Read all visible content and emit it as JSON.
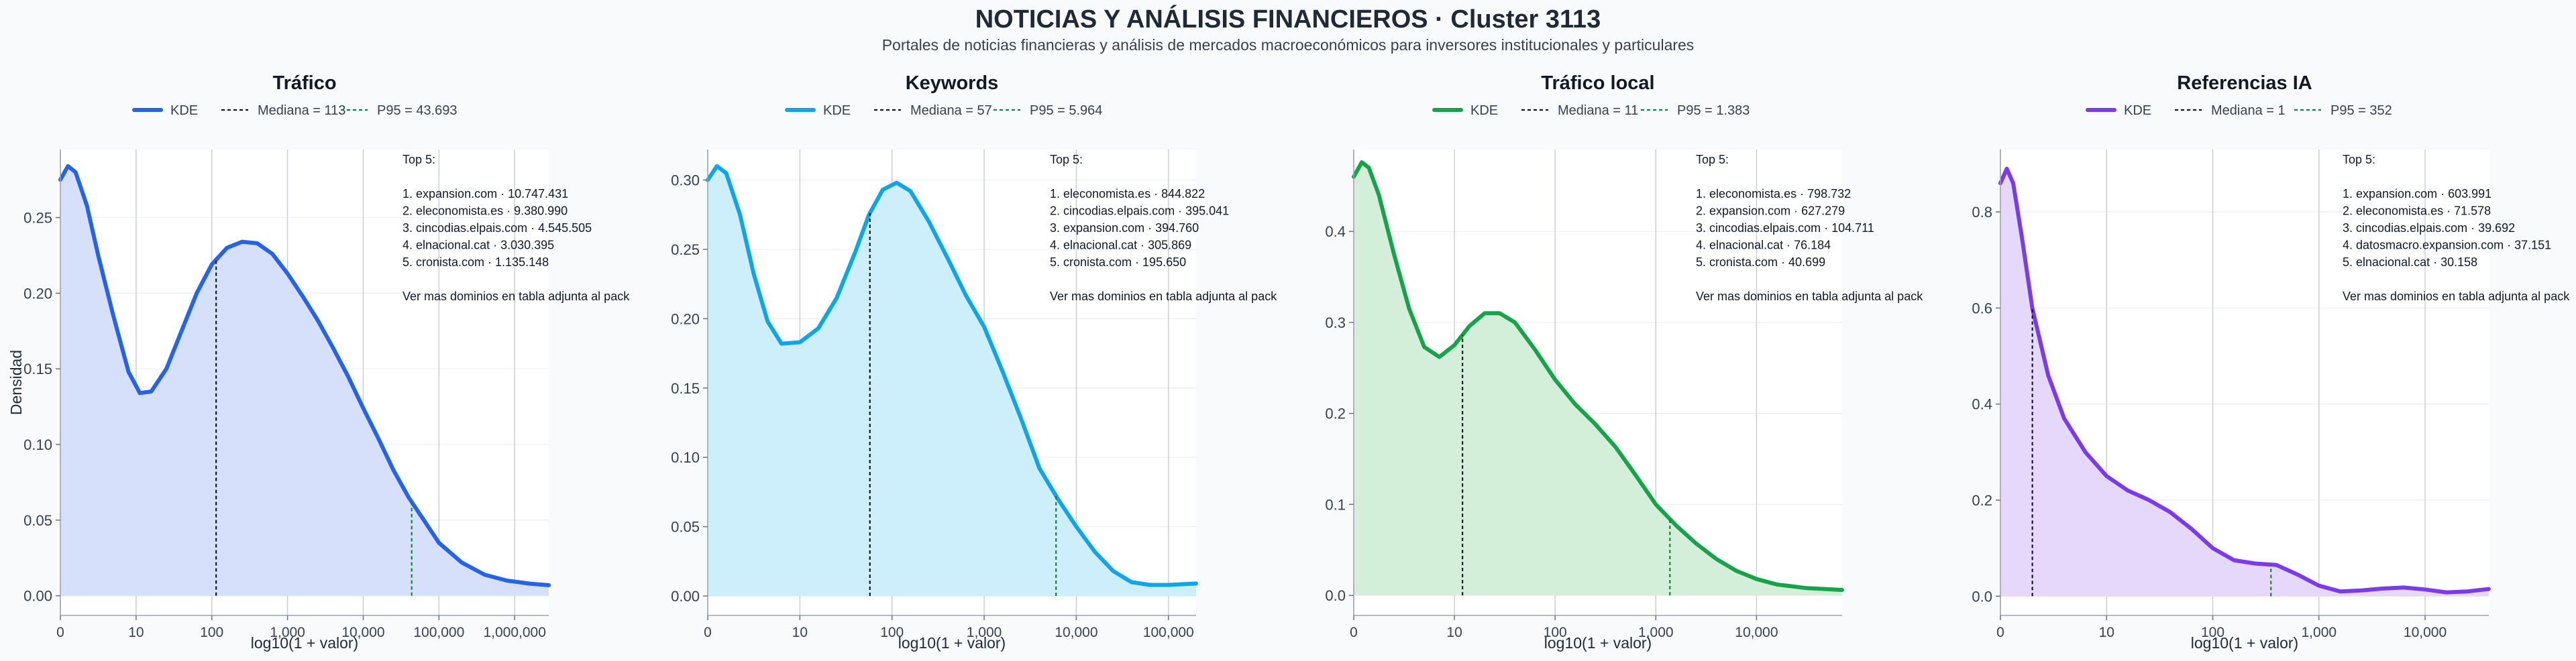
{
  "header": {
    "title": "NOTICIAS Y ANÁLISIS FINANCIEROS · Cluster 3113",
    "subtitle": "Portales de noticias financieras y análisis de mercados macroeconómicos para inversores institucionales y particulares"
  },
  "colors": {
    "background": "#f8fafc",
    "grid": "#c8ccd2",
    "median_line": "#111827",
    "p95_line": "#15803d"
  },
  "chart_data": [
    {
      "type": "area",
      "title": "Tráfico",
      "xlabel": "log10(1 + valor)",
      "ylabel": "Densidad",
      "color": "#2563eb",
      "fill": "#d6e0fa",
      "x_ticks": [
        0,
        1,
        2,
        3,
        4,
        5,
        6
      ],
      "x_tick_labels": [
        "0",
        "10",
        "100",
        "1,000",
        "10,000",
        "100,000",
        "1,000,000"
      ],
      "xlim": [
        0,
        6.45
      ],
      "y_ticks": [
        0,
        0.05,
        0.1,
        0.15,
        0.2,
        0.25
      ],
      "y_tick_labels": [
        "0.00",
        "0.05",
        "0.10",
        "0.15",
        "0.20",
        "0.25"
      ],
      "ylim": [
        -0.013,
        0.295
      ],
      "legend": {
        "kde": "KDE",
        "median": "Mediana = 113",
        "p95": "P95 = 43.693"
      },
      "median_x": 2.057,
      "p95_x": 4.64,
      "kde": {
        "x": [
          0,
          0.1,
          0.2,
          0.35,
          0.5,
          0.7,
          0.9,
          1.05,
          1.2,
          1.4,
          1.6,
          1.8,
          2.0,
          2.2,
          2.4,
          2.6,
          2.8,
          3.0,
          3.2,
          3.4,
          3.6,
          3.8,
          4.0,
          4.2,
          4.4,
          4.6,
          4.8,
          5.0,
          5.3,
          5.6,
          5.9,
          6.2,
          6.45
        ],
        "y": [
          0.275,
          0.284,
          0.28,
          0.258,
          0.225,
          0.185,
          0.148,
          0.134,
          0.135,
          0.15,
          0.175,
          0.2,
          0.219,
          0.23,
          0.234,
          0.233,
          0.226,
          0.213,
          0.198,
          0.182,
          0.164,
          0.145,
          0.124,
          0.104,
          0.083,
          0.065,
          0.05,
          0.035,
          0.022,
          0.014,
          0.01,
          0.008,
          0.007
        ]
      },
      "top5": {
        "heading": "Top 5:",
        "items": [
          "1. expansion.com · 10.747.431",
          "2. eleconomista.es · 9.380.990",
          "3. cincodias.elpais.com · 4.545.505",
          "4. elnacional.cat · 3.030.395",
          "5. cronista.com · 1.135.148"
        ],
        "footer": "Ver mas dominios en tabla adjunta al pack"
      }
    },
    {
      "type": "area",
      "title": "Keywords",
      "xlabel": "log10(1 + valor)",
      "ylabel": "",
      "color": "#0ea5e9",
      "fill": "#cdeffc",
      "x_ticks": [
        0,
        1,
        2,
        3,
        4,
        5
      ],
      "x_tick_labels": [
        "0",
        "10",
        "100",
        "1,000",
        "10,000",
        "100,000"
      ],
      "xlim": [
        0,
        5.3
      ],
      "y_ticks": [
        0,
        0.05,
        0.1,
        0.15,
        0.2,
        0.25,
        0.3
      ],
      "y_tick_labels": [
        "0.00",
        "0.05",
        "0.10",
        "0.15",
        "0.20",
        "0.25",
        "0.30"
      ],
      "ylim": [
        -0.014,
        0.322
      ],
      "legend": {
        "kde": "KDE",
        "median": "Mediana = 57",
        "p95": "P95 = 5.964"
      },
      "median_x": 1.76,
      "p95_x": 3.78,
      "kde": {
        "x": [
          0,
          0.1,
          0.2,
          0.35,
          0.5,
          0.65,
          0.8,
          1.0,
          1.2,
          1.4,
          1.6,
          1.75,
          1.9,
          2.05,
          2.2,
          2.4,
          2.6,
          2.8,
          3.0,
          3.2,
          3.4,
          3.6,
          3.8,
          4.0,
          4.2,
          4.4,
          4.6,
          4.8,
          5.0,
          5.3
        ],
        "y": [
          0.3,
          0.31,
          0.305,
          0.275,
          0.232,
          0.198,
          0.182,
          0.183,
          0.193,
          0.215,
          0.248,
          0.275,
          0.293,
          0.298,
          0.292,
          0.27,
          0.244,
          0.217,
          0.194,
          0.162,
          0.128,
          0.092,
          0.07,
          0.05,
          0.032,
          0.018,
          0.01,
          0.008,
          0.008,
          0.009
        ]
      },
      "top5": {
        "heading": "Top 5:",
        "items": [
          "1. eleconomista.es · 844.822",
          "2. cincodias.elpais.com · 395.041",
          "3. expansion.com · 394.760",
          "4. elnacional.cat · 305.869",
          "5. cronista.com · 195.650"
        ],
        "footer": "Ver mas dominios en tabla adjunta al pack"
      }
    },
    {
      "type": "area",
      "title": "Tráfico local",
      "xlabel": "log10(1 + valor)",
      "ylabel": "",
      "color": "#16a34a",
      "fill": "#d3eed9",
      "x_ticks": [
        0,
        1,
        2,
        3,
        4
      ],
      "x_tick_labels": [
        "0",
        "10",
        "100",
        "1,000",
        "10,000"
      ],
      "xlim": [
        0,
        4.85
      ],
      "y_ticks": [
        0,
        0.1,
        0.2,
        0.3,
        0.4
      ],
      "y_tick_labels": [
        "0.0",
        "0.1",
        "0.2",
        "0.3",
        "0.4"
      ],
      "ylim": [
        -0.022,
        0.49
      ],
      "legend": {
        "kde": "KDE",
        "median": "Mediana = 11",
        "p95": "P95 = 1.383"
      },
      "median_x": 1.08,
      "p95_x": 3.14,
      "kde": {
        "x": [
          0,
          0.08,
          0.15,
          0.25,
          0.4,
          0.55,
          0.7,
          0.85,
          1.0,
          1.15,
          1.3,
          1.45,
          1.6,
          1.8,
          2.0,
          2.2,
          2.4,
          2.6,
          2.8,
          3.0,
          3.2,
          3.4,
          3.6,
          3.8,
          4.0,
          4.2,
          4.5,
          4.85
        ],
        "y": [
          0.46,
          0.476,
          0.47,
          0.44,
          0.375,
          0.315,
          0.273,
          0.262,
          0.275,
          0.296,
          0.31,
          0.31,
          0.3,
          0.27,
          0.237,
          0.21,
          0.188,
          0.163,
          0.132,
          0.1,
          0.077,
          0.057,
          0.04,
          0.027,
          0.018,
          0.012,
          0.008,
          0.006
        ]
      },
      "top5": {
        "heading": "Top 5:",
        "items": [
          "1. eleconomista.es · 798.732",
          "2. expansion.com · 627.279",
          "3. cincodias.elpais.com · 104.711",
          "4. elnacional.cat · 76.184",
          "5. cronista.com · 40.699"
        ],
        "footer": "Ver mas dominios en tabla adjunta al pack"
      }
    },
    {
      "type": "area",
      "title": "Referencias IA",
      "xlabel": "log10(1 + valor)",
      "ylabel": "",
      "color": "#7c3aed",
      "fill": "#e5d8fb",
      "x_ticks": [
        0,
        1,
        2,
        3,
        4
      ],
      "x_tick_labels": [
        "0",
        "10",
        "100",
        "1,000",
        "10,000"
      ],
      "xlim": [
        0,
        4.6
      ],
      "y_ticks": [
        0,
        0.2,
        0.4,
        0.6,
        0.8
      ],
      "y_tick_labels": [
        "0.0",
        "0.2",
        "0.4",
        "0.6",
        "0.8"
      ],
      "ylim": [
        -0.04,
        0.93
      ],
      "legend": {
        "kde": "KDE",
        "median": "Mediana = 1",
        "p95": "P95 = 352"
      },
      "median_x": 0.301,
      "p95_x": 2.548,
      "kde": {
        "x": [
          0,
          0.06,
          0.12,
          0.2,
          0.3,
          0.45,
          0.6,
          0.8,
          1.0,
          1.2,
          1.4,
          1.6,
          1.8,
          2.0,
          2.2,
          2.4,
          2.6,
          2.8,
          3.0,
          3.2,
          3.4,
          3.6,
          3.8,
          4.0,
          4.2,
          4.4,
          4.6
        ],
        "y": [
          0.86,
          0.89,
          0.86,
          0.75,
          0.6,
          0.46,
          0.37,
          0.3,
          0.25,
          0.22,
          0.2,
          0.175,
          0.14,
          0.1,
          0.075,
          0.068,
          0.065,
          0.045,
          0.022,
          0.01,
          0.012,
          0.016,
          0.018,
          0.014,
          0.008,
          0.01,
          0.015
        ]
      },
      "top5": {
        "heading": "Top 5:",
        "items": [
          "1. expansion.com · 603.991",
          "2. eleconomista.es · 71.578",
          "3. cincodias.elpais.com · 39.692",
          "4. datosmacro.expansion.com · 37.151",
          "5. elnacional.cat · 30.158"
        ],
        "footer": "Ver mas dominios en tabla adjunta al pack"
      }
    }
  ]
}
